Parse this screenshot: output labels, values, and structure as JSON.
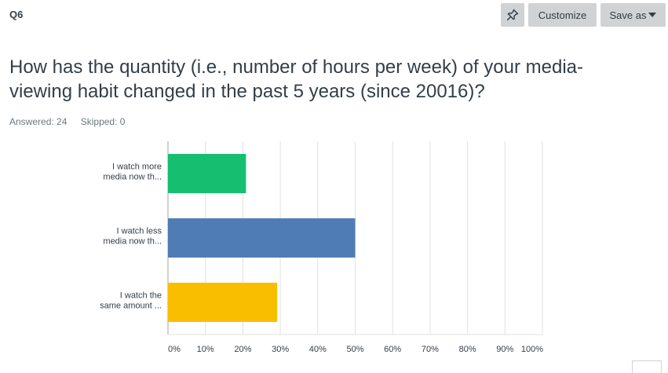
{
  "question": {
    "number": "Q6",
    "title": "How has the quantity (i.e., number of hours per week) of your media-viewing habit changed in the past 5 years (since 20016)?",
    "answered": "Answered: 24",
    "skipped": "Skipped: 0"
  },
  "toolbar": {
    "pin_icon": "pin-icon",
    "customize_label": "Customize",
    "save_label": "Save as"
  },
  "colors": {
    "bar_1": "#16bf6f",
    "bar_2": "#507cb6",
    "bar_3": "#f9be00",
    "grid": "#e0e2e3",
    "axis": "#9da5aa"
  },
  "chart_data": {
    "type": "bar",
    "orientation": "horizontal",
    "categories": [
      [
        "I watch more",
        "media now th..."
      ],
      [
        "I watch less",
        "media now th..."
      ],
      [
        "I watch the",
        "same amount ..."
      ]
    ],
    "values": [
      20.83,
      50.0,
      29.17
    ],
    "x_ticks": [
      "0%",
      "10%",
      "20%",
      "30%",
      "40%",
      "50%",
      "60%",
      "70%",
      "80%",
      "90%",
      "100%"
    ],
    "xlim": [
      0,
      100
    ],
    "grid": true
  }
}
